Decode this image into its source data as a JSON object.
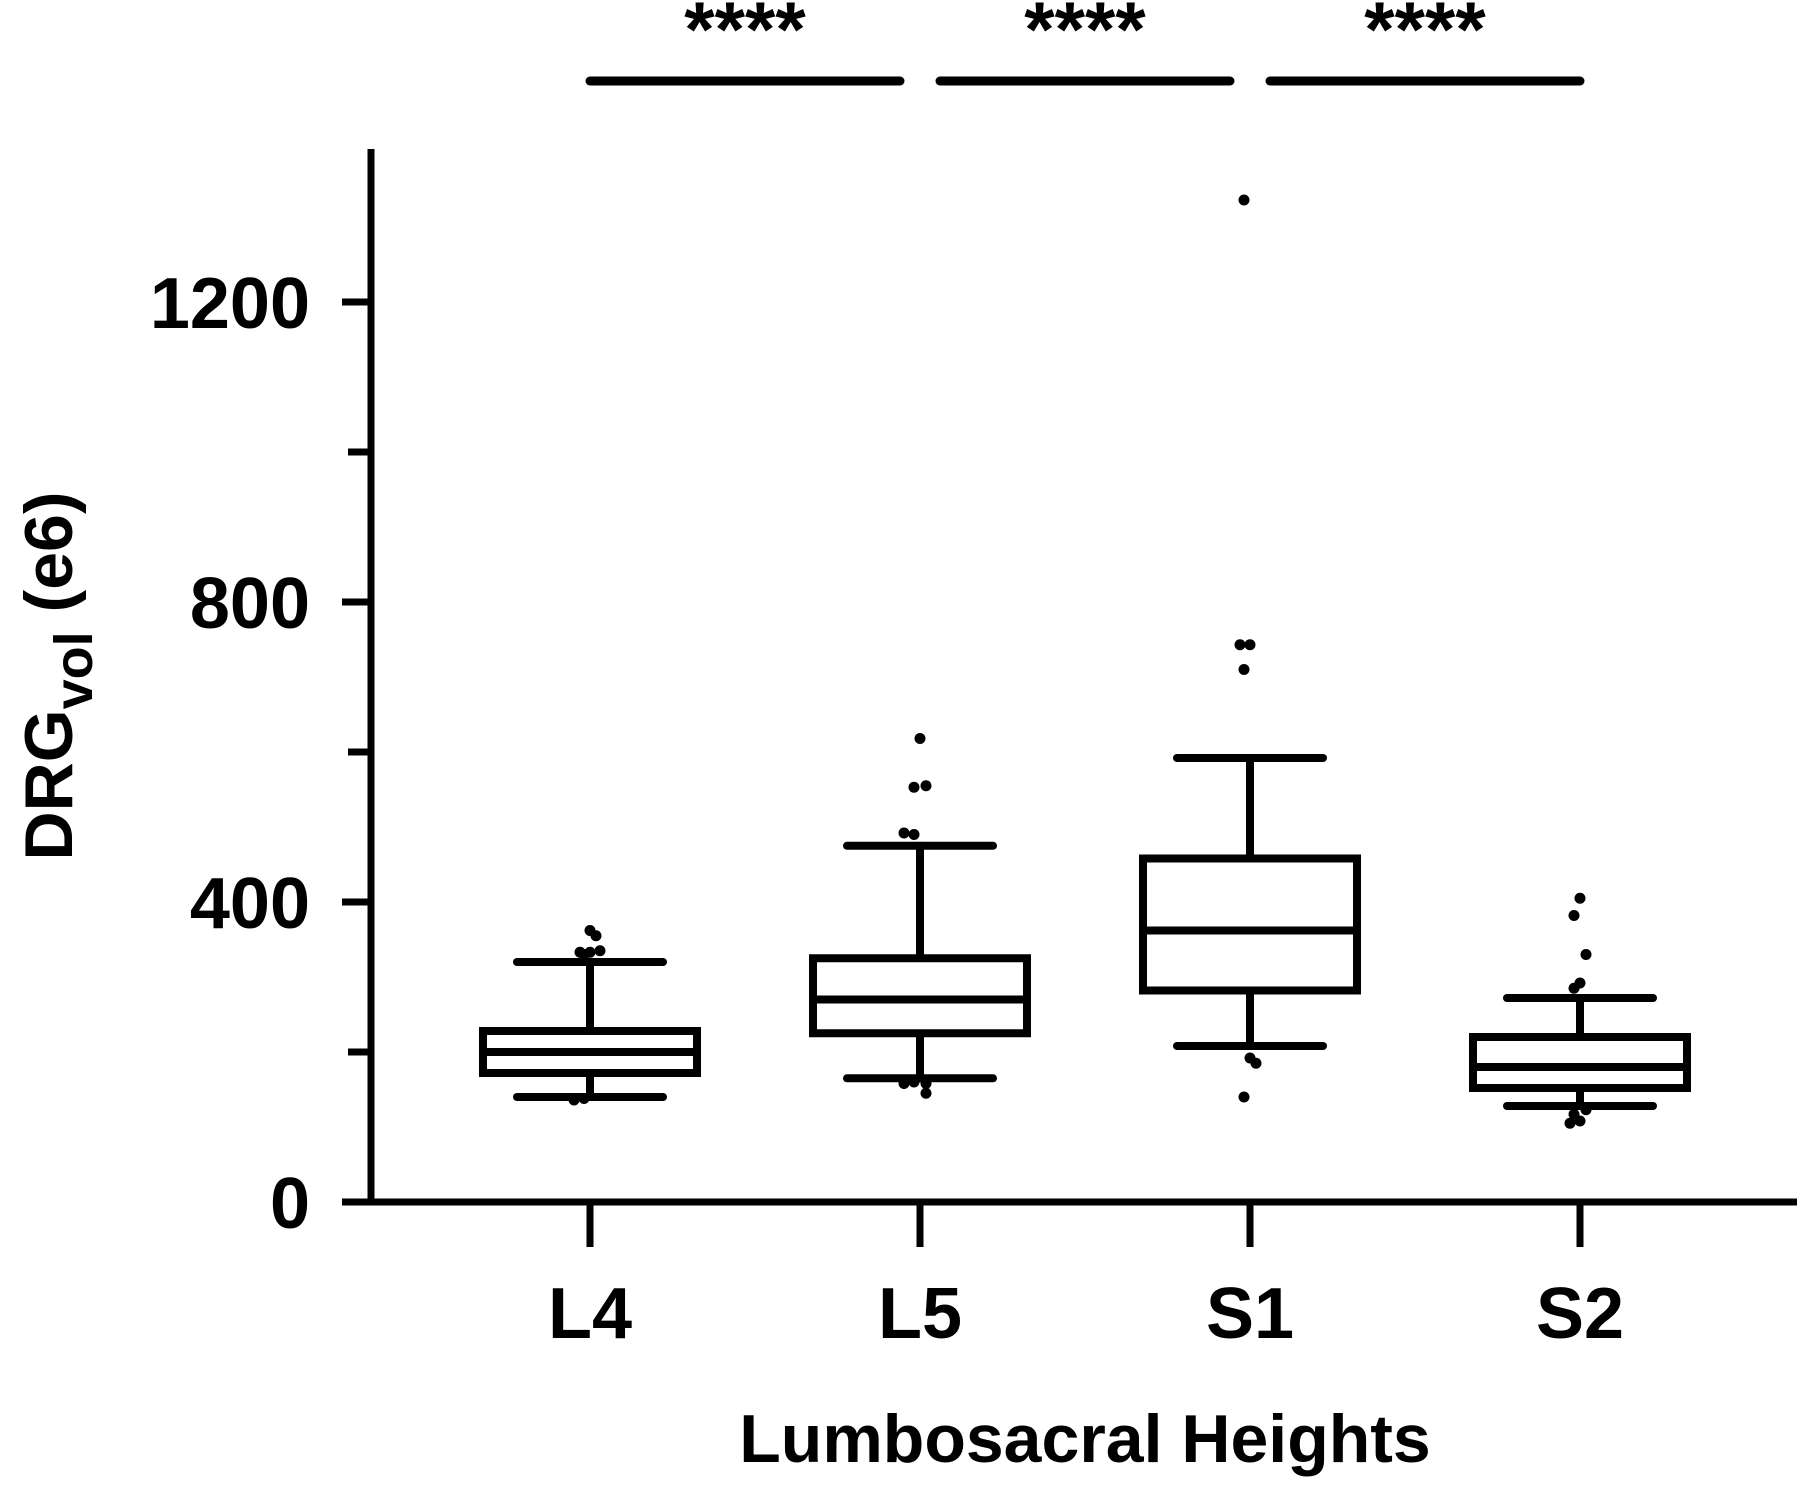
{
  "chart_data": {
    "type": "box",
    "xlabel": "Lumbosacral Heights",
    "ylabel_main": "DRG",
    "ylabel_sub": "vol",
    "ylabel_suffix": " (e6)",
    "ylim": [
      0,
      1400
    ],
    "yticks_major": [
      0,
      400,
      800,
      1200
    ],
    "yticks_minor": [
      200,
      600,
      1000
    ],
    "categories": [
      "L4",
      "L5",
      "S1",
      "S2"
    ],
    "boxes": [
      {
        "name": "L4",
        "whisker_low": 140,
        "q1": 172,
        "median": 200,
        "q3": 228,
        "whisker_high": 320,
        "outliers": [
          330,
          333,
          333,
          335,
          362,
          355,
          138,
          136
        ]
      },
      {
        "name": "L5",
        "whisker_low": 165,
        "q1": 225,
        "median": 270,
        "q3": 325,
        "whisker_high": 475,
        "outliers": [
          490,
          492,
          555,
          553,
          618,
          158,
          160,
          158,
          145
        ]
      },
      {
        "name": "S1",
        "whisker_low": 208,
        "q1": 282,
        "median": 362,
        "q3": 458,
        "whisker_high": 592,
        "outliers": [
          710,
          743,
          743,
          1336,
          192,
          185,
          140
        ]
      },
      {
        "name": "S2",
        "whisker_low": 128,
        "q1": 152,
        "median": 180,
        "q3": 220,
        "whisker_high": 272,
        "outliers": [
          285,
          292,
          330,
          382,
          405,
          123,
          117,
          108,
          105
        ]
      }
    ],
    "significance": [
      {
        "from": "L4",
        "to": "L5",
        "label": "****"
      },
      {
        "from": "L5",
        "to": "S1",
        "label": "****"
      },
      {
        "from": "S1",
        "to": "S2",
        "label": "****"
      }
    ]
  }
}
